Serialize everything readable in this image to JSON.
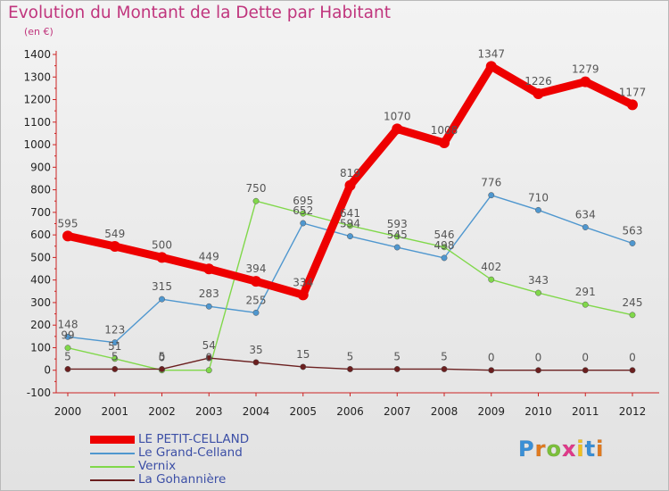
{
  "title": "Evolution du Montant de la Dette par Habitant",
  "subtitle": "(en €)",
  "logo": {
    "text": "Proxiti",
    "colors": [
      "#3a8fd6",
      "#e07a1f",
      "#7bbf3a",
      "#e03a8a",
      "#f0c020",
      "#3a8fd6",
      "#e07a1f"
    ]
  },
  "chart_data": {
    "type": "line",
    "x": [
      "2000",
      "2001",
      "2002",
      "2003",
      "2004",
      "2005",
      "2006",
      "2007",
      "2008",
      "2009",
      "2010",
      "2011",
      "2012"
    ],
    "ylim": [
      -100,
      1400
    ],
    "yticks": [
      -100,
      0,
      100,
      200,
      300,
      400,
      500,
      600,
      700,
      800,
      900,
      1000,
      1100,
      1200,
      1300,
      1400
    ],
    "grid": false,
    "legend_position": "bottom-left",
    "series": [
      {
        "name": "LE PETIT-CELLAND",
        "color": "#ee0000",
        "values": [
          595,
          549,
          500,
          449,
          394,
          334,
          819,
          1070,
          1008,
          1347,
          1226,
          1279,
          1177
        ],
        "labels": [
          "595",
          "549",
          "500",
          "449",
          "394",
          "334",
          "819",
          "1070",
          "1008",
          "1347",
          "1226",
          "1279",
          "1177"
        ]
      },
      {
        "name": "Le Grand-Celland",
        "color": "#4f97cf",
        "values": [
          148,
          123,
          315,
          283,
          255,
          652,
          594,
          545,
          498,
          776,
          710,
          634,
          563
        ],
        "labels": [
          "148",
          "123",
          "315",
          "283",
          "255",
          "652",
          "594",
          "545",
          "498",
          "776",
          "710",
          "634",
          "563"
        ]
      },
      {
        "name": "Vernix",
        "color": "#80d84a",
        "values": [
          99,
          51,
          0,
          0,
          750,
          695,
          641,
          593,
          546,
          402,
          343,
          291,
          245
        ],
        "labels": [
          "99",
          "51",
          "0",
          "0",
          "750",
          "695",
          "641",
          "593",
          "546",
          "402",
          "343",
          "291",
          "245"
        ]
      },
      {
        "name": "La Gohannière",
        "color": "#6b1f1f",
        "values": [
          5,
          5,
          5,
          54,
          35,
          15,
          5,
          5,
          5,
          0,
          0,
          0,
          0
        ],
        "labels": [
          "5",
          "5",
          "5",
          "54",
          "35",
          "15",
          "5",
          "5",
          "5",
          "0",
          "0",
          "0",
          "0"
        ]
      }
    ]
  }
}
